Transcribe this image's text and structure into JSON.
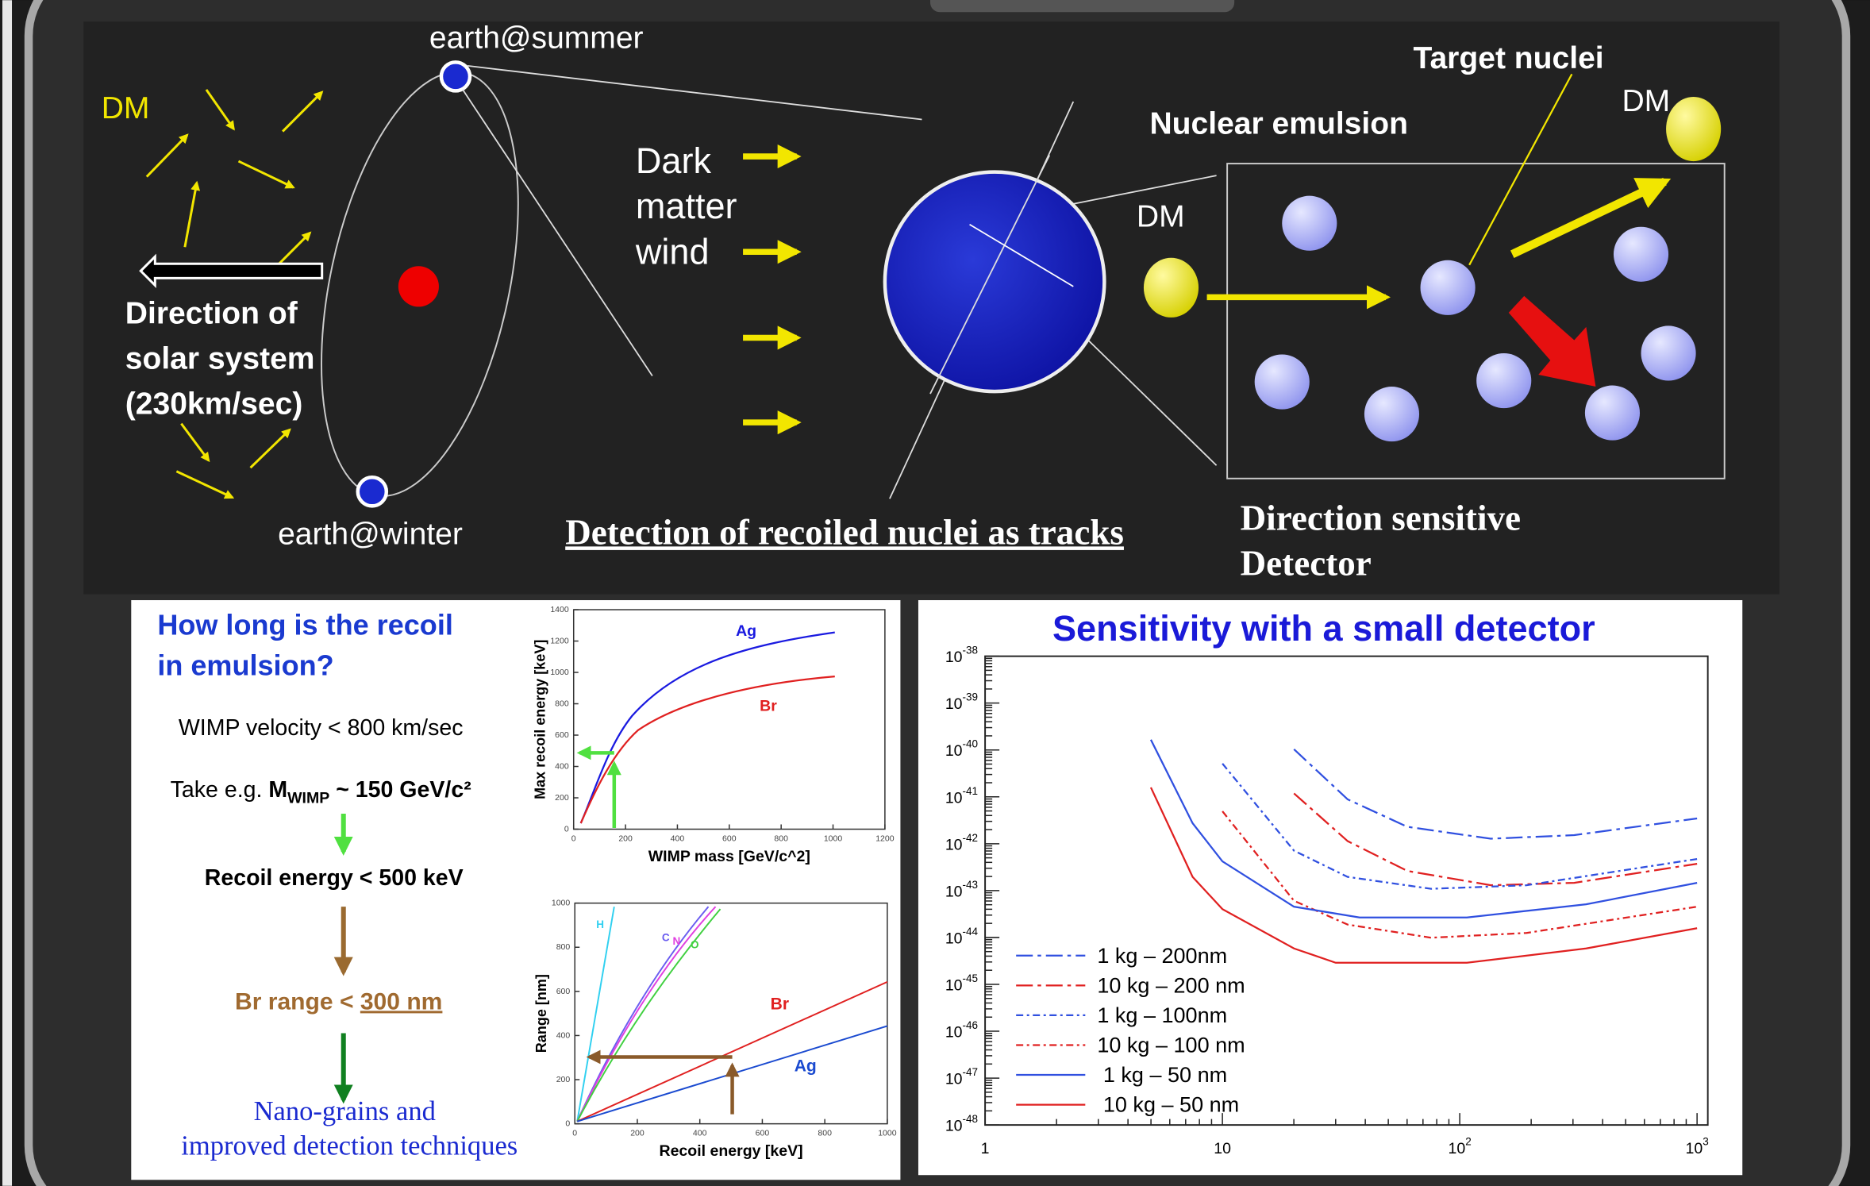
{
  "diagram": {
    "dm_left": "DM",
    "earth_summer": "earth@summer",
    "earth_winter": "earth@winter",
    "solar_direction": [
      "Direction of",
      "solar system",
      "(230km/sec)"
    ],
    "wind": [
      "Dark",
      "matter",
      "wind"
    ],
    "detection": "Detection of recoiled nuclei as tracks",
    "target_nuclei": "Target nuclei",
    "dm_top": "DM",
    "emulsion": "Nuclear emulsion",
    "dm_mid": "DM",
    "detector": [
      "Direction sensitive",
      "Detector"
    ]
  },
  "recoil": {
    "title": [
      "How long is the recoil",
      "in emulsion?"
    ],
    "velocity": "WIMP velocity < 800 km/sec",
    "mass_prefix": "Take e.g. ",
    "mass": "M",
    "mass_sub": "WIMP",
    "mass_suffix": " ~  150 GeV/c²",
    "energy": "Recoil energy < 500 keV",
    "range_prefix": "Br range < ",
    "range_value": "300 nm",
    "conclusion": [
      "Nano-grains and",
      "improved detection techniques"
    ]
  },
  "plot_energy": {
    "xlabel": "WIMP mass [GeV/c^2]",
    "ylabel": "Max recoil energy [keV]",
    "xticks": [
      "0",
      "200",
      "400",
      "600",
      "800",
      "1000",
      "1200"
    ],
    "yticks": [
      "0",
      "200",
      "400",
      "600",
      "800",
      "1000",
      "1200",
      "1400"
    ],
    "curves": [
      {
        "name": "Ag",
        "color": "#1a1ae0"
      },
      {
        "name": "Br",
        "color": "#e02020"
      }
    ]
  },
  "plot_range": {
    "xlabel": "Recoil energy [keV]",
    "ylabel": "Range [nm]",
    "xticks": [
      "0",
      "200",
      "400",
      "600",
      "800",
      "1000"
    ],
    "yticks": [
      "0",
      "200",
      "400",
      "600",
      "800",
      "1000"
    ],
    "curves": [
      {
        "name": "H",
        "color": "#30d0f0"
      },
      {
        "name": "C",
        "color": "#6a5cf0"
      },
      {
        "name": "N",
        "color": "#e040e0"
      },
      {
        "name": "O",
        "color": "#40d040"
      },
      {
        "name": "Br",
        "color": "#e02020"
      },
      {
        "name": "Ag",
        "color": "#1a4ad0"
      }
    ]
  },
  "sensitivity": {
    "title": "Sensitivity with a small detector",
    "tick_base": "10",
    "xticks": [
      {
        "base": "1"
      },
      {
        "base": "10"
      },
      {
        "base": "10",
        "exp": "2"
      },
      {
        "base": "10",
        "exp": "3"
      }
    ],
    "yticks": [
      "-38",
      "-39",
      "-40",
      "-41",
      "-42",
      "-43",
      "-44",
      "-45",
      "-46",
      "-47",
      "-48"
    ],
    "legend": [
      {
        "label": "1 kg – 200nm",
        "color": "#3050e0",
        "dash": "14 4 3 4"
      },
      {
        "label": "10 kg – 200 nm",
        "color": "#e02020",
        "dash": "14 4 3 4"
      },
      {
        "label": "1 kg – 100nm",
        "color": "#3050e0",
        "dash": "6 3 2 3"
      },
      {
        "label": "10 kg – 100 nm",
        "color": "#e02020",
        "dash": "6 3 2 3"
      },
      {
        "label": "1 kg – 50 nm",
        "color": "#3050e0",
        "dash": "none"
      },
      {
        "label": "10 kg – 50 nm",
        "color": "#e02020",
        "dash": "none"
      }
    ]
  }
}
